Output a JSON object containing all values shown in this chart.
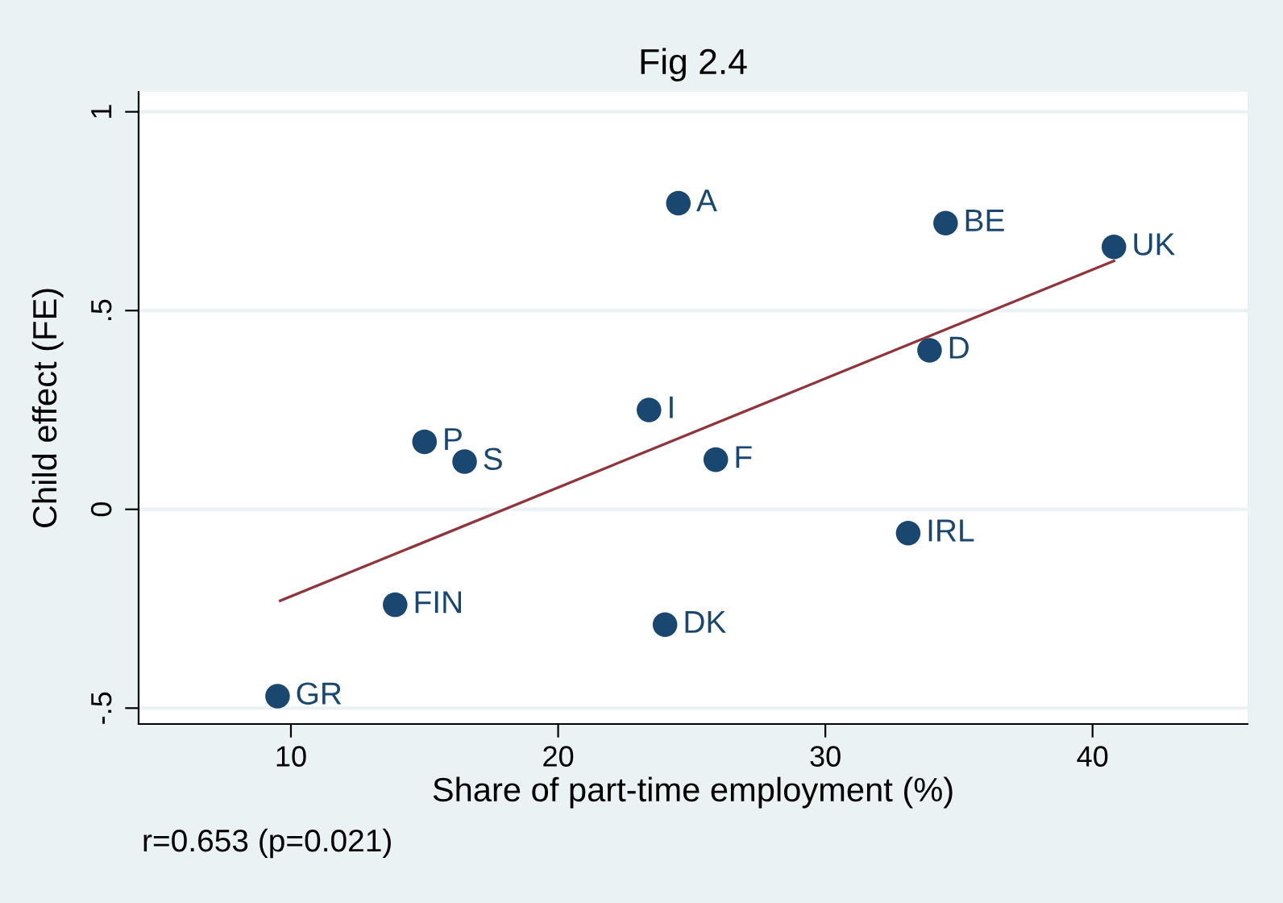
{
  "chart_data": {
    "type": "scatter",
    "title": "Fig 2.4",
    "xlabel": "Share of part-time employment (%)",
    "ylabel": "Child effect (FE)",
    "series": [
      {
        "marker": "circle",
        "color": "#1a476f",
        "x": [
          9.5,
          13.9,
          15.0,
          16.5,
          23.4,
          24.5,
          24.0,
          25.9,
          33.1,
          33.9,
          34.5,
          40.8
        ],
        "values": [
          -0.47,
          -0.24,
          0.17,
          0.12,
          0.25,
          0.77,
          -0.29,
          0.125,
          -0.06,
          0.4,
          0.72,
          0.66
        ]
      },
      {
        "type": "line",
        "color": "#90353b",
        "x": [
          9.6,
          40.8
        ],
        "values": [
          -0.23,
          0.625
        ]
      }
    ],
    "annotations": [
      {
        "text": "GR",
        "x": 9.5,
        "y": -0.47
      },
      {
        "text": "FIN",
        "x": 13.9,
        "y": -0.24
      },
      {
        "text": "P",
        "x": 15.0,
        "y": 0.17
      },
      {
        "text": "S",
        "x": 16.5,
        "y": 0.12
      },
      {
        "text": "I",
        "x": 23.4,
        "y": 0.25
      },
      {
        "text": "A",
        "x": 24.5,
        "y": 0.77
      },
      {
        "text": "DK",
        "x": 24.0,
        "y": -0.29
      },
      {
        "text": "F",
        "x": 25.9,
        "y": 0.125
      },
      {
        "text": "IRL",
        "x": 33.1,
        "y": -0.06
      },
      {
        "text": "D",
        "x": 33.9,
        "y": 0.4
      },
      {
        "text": "BE",
        "x": 34.5,
        "y": 0.72
      },
      {
        "text": "UK",
        "x": 40.8,
        "y": 0.66
      },
      "r=0.653 (p=0.021)"
    ],
    "xlim": [
      4.3,
      45.8
    ],
    "ylim": [
      -0.54,
      1.05
    ],
    "xticks": [
      10,
      20,
      30,
      40
    ],
    "yticks": [
      {
        "value": -0.5,
        "label": "-.5"
      },
      0,
      {
        "value": 0.5,
        "label": ".5"
      },
      1
    ],
    "grid": "y"
  }
}
